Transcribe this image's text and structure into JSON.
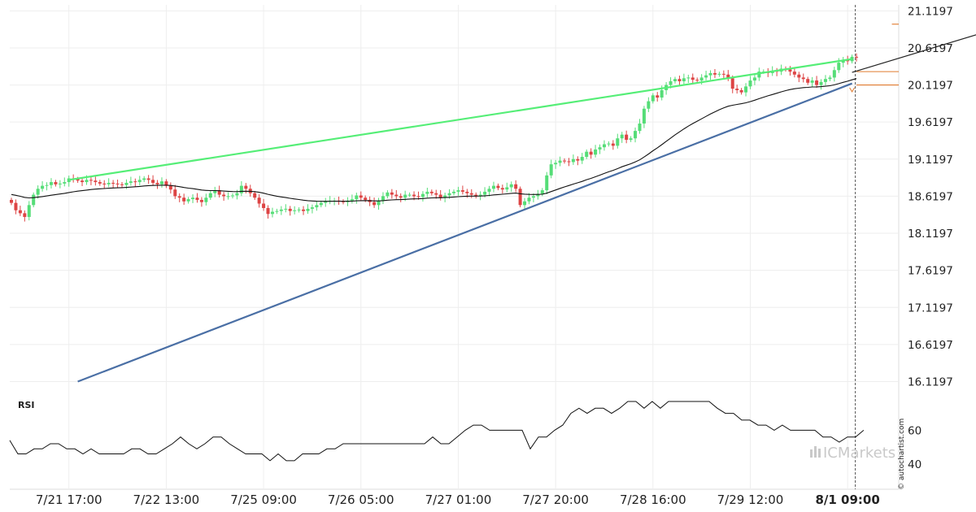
{
  "chart_data": {
    "type": "candlestick",
    "y_axis": {
      "ticks": [
        "21.1197",
        "20.6197",
        "20.1197",
        "19.6197",
        "19.1197",
        "18.6197",
        "18.1197",
        "17.6197",
        "17.1197",
        "16.6197",
        "16.1197"
      ],
      "range": [
        15.95,
        21.2
      ]
    },
    "x_axis": {
      "ticks": [
        "7/21 17:00",
        "7/22 13:00",
        "7/25 09:00",
        "7/26 05:00",
        "7/27 01:00",
        "7/27 20:00",
        "7/28 16:00",
        "7/29 12:00",
        "8/1 09:00"
      ],
      "highlighted_tick": "8/1 09:00",
      "bar_count": 194,
      "tick_bar_index": [
        13,
        35,
        57,
        79,
        101,
        123,
        145,
        167,
        189
      ]
    },
    "price_closes": [
      18.53,
      18.43,
      18.39,
      18.34,
      18.5,
      18.64,
      18.72,
      18.76,
      18.77,
      18.81,
      18.78,
      18.79,
      18.81,
      18.86,
      18.85,
      18.83,
      18.81,
      18.84,
      18.83,
      18.81,
      18.79,
      18.78,
      18.8,
      18.79,
      18.78,
      18.77,
      18.8,
      18.82,
      18.81,
      18.84,
      18.86,
      18.84,
      18.8,
      18.78,
      18.82,
      18.76,
      18.71,
      18.62,
      18.6,
      18.55,
      18.58,
      18.6,
      18.57,
      18.54,
      18.6,
      18.66,
      18.7,
      18.64,
      18.62,
      18.62,
      18.63,
      18.66,
      18.76,
      18.72,
      18.66,
      18.6,
      18.52,
      18.46,
      18.38,
      18.41,
      18.42,
      18.44,
      18.45,
      18.42,
      18.43,
      18.44,
      18.42,
      18.45,
      18.47,
      18.5,
      18.53,
      18.55,
      18.56,
      18.56,
      18.55,
      18.54,
      18.56,
      18.58,
      18.63,
      18.6,
      18.57,
      18.54,
      18.5,
      18.56,
      18.62,
      18.67,
      18.64,
      18.62,
      18.6,
      18.64,
      18.64,
      18.62,
      18.61,
      18.65,
      18.68,
      18.66,
      18.64,
      18.6,
      18.63,
      18.66,
      18.68,
      18.7,
      18.68,
      18.66,
      18.64,
      18.62,
      18.64,
      18.68,
      18.72,
      18.76,
      18.73,
      18.71,
      18.74,
      18.78,
      18.72,
      18.5,
      18.55,
      18.6,
      18.62,
      18.65,
      18.7,
      18.9,
      19.05,
      19.07,
      19.1,
      19.09,
      19.08,
      19.12,
      19.1,
      19.15,
      19.22,
      19.18,
      19.25,
      19.28,
      19.32,
      19.33,
      19.3,
      19.4,
      19.45,
      19.38,
      19.4,
      19.5,
      19.6,
      19.8,
      19.9,
      19.98,
      19.95,
      20.05,
      20.12,
      20.17,
      20.2,
      20.17,
      20.21,
      20.22,
      20.19,
      20.18,
      20.22,
      20.25,
      20.28,
      20.26,
      20.27,
      20.26,
      20.21,
      20.07,
      20.05,
      20.02,
      20.1,
      20.18,
      20.22,
      20.3,
      20.3,
      20.28,
      20.31,
      20.3,
      20.34,
      20.33,
      20.3,
      20.26,
      20.22,
      20.2,
      20.15,
      20.18,
      20.12,
      20.16,
      20.2,
      20.22,
      20.32,
      20.42,
      20.46,
      20.44,
      20.5,
      20.49
    ],
    "ma_start": 18.65,
    "series": [
      {
        "kind": "resistance",
        "color": "#55ee77",
        "points": [
          [
            13,
            18.84
          ],
          [
            190,
            20.47
          ]
        ]
      },
      {
        "kind": "support",
        "color": "#4a6fa5",
        "points": [
          [
            15,
            16.12
          ],
          [
            190,
            20.14
          ]
        ]
      },
      {
        "kind": "projection",
        "color": "#222222",
        "points": [
          [
            190,
            20.29
          ],
          [
            226,
            20.94
          ]
        ]
      }
    ],
    "levels": [
      {
        "value": 20.94,
        "color": "#e07a2e",
        "from_bar": 199
      },
      {
        "value": 20.3,
        "color": "#e07a2e",
        "from_bar": 191
      },
      {
        "value": 20.12,
        "color": "#e07a2e",
        "from_bar": 191
      }
    ],
    "signal_marker_bar": 190,
    "rsi": {
      "label": "RSI",
      "ticks": [
        "60",
        "40"
      ],
      "range": [
        28,
        77
      ],
      "values": [
        54,
        46,
        46,
        49,
        49,
        52,
        52,
        49,
        49,
        46,
        49,
        46,
        46,
        46,
        46,
        49,
        49,
        46,
        46,
        49,
        52,
        56,
        52,
        49,
        52,
        56,
        56,
        52,
        49,
        46,
        46,
        46,
        42,
        46,
        42,
        42,
        46,
        46,
        46,
        49,
        49,
        52,
        52,
        52,
        52,
        52,
        52,
        52,
        52,
        52,
        52,
        52,
        56,
        52,
        52,
        56,
        60,
        63,
        63,
        60,
        60,
        60,
        60,
        60,
        49,
        56,
        56,
        60,
        63,
        70,
        73,
        70,
        73,
        73,
        70,
        73,
        77,
        77,
        73,
        77,
        73,
        77,
        77,
        77,
        77,
        77,
        77,
        73,
        70,
        70,
        66,
        66,
        63,
        63,
        60,
        63,
        60,
        60,
        60,
        60,
        56,
        56,
        53,
        56,
        56,
        60
      ],
      "current_value": 59
    },
    "colors": {
      "up_candle": "#55dd77",
      "down_candle": "#dd4444",
      "moving_average": "#111111",
      "grid": "#eeeeee",
      "current_time_line": "#555555"
    },
    "legend_placement": "none"
  },
  "branding": {
    "watermark": "© autochartist.com",
    "logo": "ICMarkets"
  }
}
